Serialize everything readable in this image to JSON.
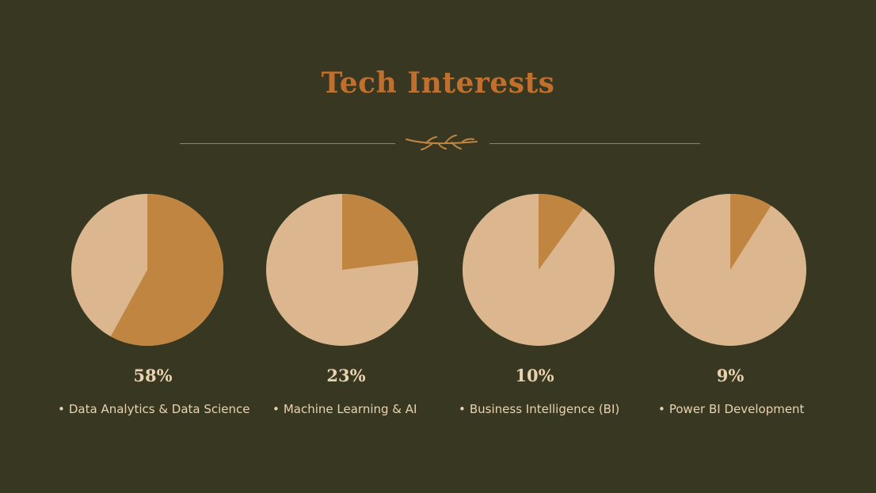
{
  "title": "Tech Interests",
  "colors": {
    "background": "#383822",
    "title": "#c06f2c",
    "slice_highlight": "#c08641",
    "slice_rest": "#dbb68e",
    "text": "#e9d2b0"
  },
  "chart_data": [
    {
      "type": "pie",
      "label": "Data Analytics & Data Science",
      "value": 58,
      "value_label": "58%"
    },
    {
      "type": "pie",
      "label": "Machine Learning & AI",
      "value": 23,
      "value_label": "23%"
    },
    {
      "type": "pie",
      "label": "Business Intelligence (BI)",
      "value": 10,
      "value_label": "10%"
    },
    {
      "type": "pie",
      "label": "Power BI Development",
      "value": 9,
      "value_label": "9%"
    }
  ]
}
